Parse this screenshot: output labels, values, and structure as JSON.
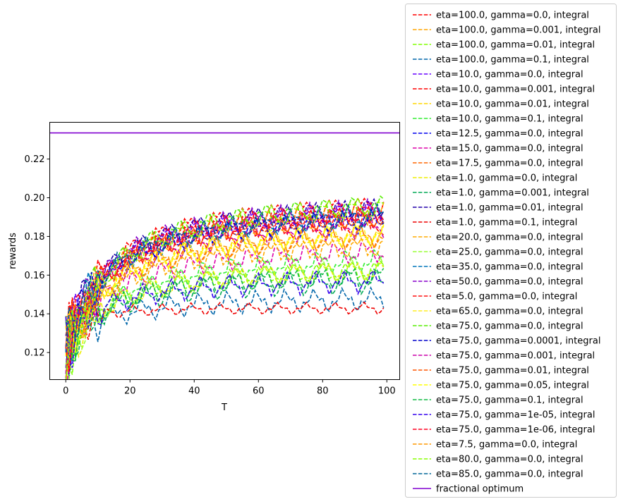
{
  "chart_data": {
    "type": "line",
    "title": "",
    "xlabel": "T",
    "ylabel": "rewards",
    "xlim": [
      -5,
      104
    ],
    "ylim": [
      0.106,
      0.239
    ],
    "xticks": [
      0,
      20,
      40,
      60,
      80,
      100
    ],
    "yticks": [
      0.12,
      0.14,
      0.16,
      0.18,
      0.2,
      0.22
    ],
    "legend_position": "right-outside",
    "grid": false,
    "reference_line": {
      "name": "fractional optimum",
      "value": 0.2335,
      "color": "#8000d0"
    },
    "series": [
      {
        "name": "eta=100.0, gamma=0.0, integral",
        "color": "#ff0000",
        "start": 0.122,
        "final": 0.214,
        "k": 0.0065,
        "jitter": 0.004
      },
      {
        "name": "eta=100.0, gamma=0.001, integral",
        "color": "#ffa500",
        "start": 0.12,
        "final": 0.206,
        "k": 0.007,
        "jitter": 0.004
      },
      {
        "name": "eta=100.0, gamma=0.01, integral",
        "color": "#80ff00",
        "start": 0.118,
        "final": 0.172,
        "k": 0.007,
        "jitter": 0.004
      },
      {
        "name": "eta=100.0, gamma=0.1, integral",
        "color": "#0066aa",
        "start": 0.124,
        "final": 0.151,
        "k": 0.008,
        "jitter": 0.004
      },
      {
        "name": "eta=10.0, gamma=0.0, integral",
        "color": "#6600ff",
        "start": 0.124,
        "final": 0.212,
        "k": 0.006,
        "jitter": 0.004
      },
      {
        "name": "eta=10.0, gamma=0.001, integral",
        "color": "#ff0000",
        "start": 0.121,
        "final": 0.207,
        "k": 0.0065,
        "jitter": 0.004
      },
      {
        "name": "eta=10.0, gamma=0.01, integral",
        "color": "#ffd700",
        "start": 0.119,
        "final": 0.196,
        "k": 0.0065,
        "jitter": 0.004
      },
      {
        "name": "eta=10.0, gamma=0.1, integral",
        "color": "#33ee33",
        "start": 0.122,
        "final": 0.181,
        "k": 0.006,
        "jitter": 0.004
      },
      {
        "name": "eta=12.5, gamma=0.0, integral",
        "color": "#0000ee",
        "start": 0.123,
        "final": 0.204,
        "k": 0.0065,
        "jitter": 0.004
      },
      {
        "name": "eta=15.0, gamma=0.0, integral",
        "color": "#dd00aa",
        "start": 0.12,
        "final": 0.185,
        "k": 0.0065,
        "jitter": 0.004
      },
      {
        "name": "eta=17.5, gamma=0.0, integral",
        "color": "#ff6600",
        "start": 0.118,
        "final": 0.196,
        "k": 0.0065,
        "jitter": 0.004
      },
      {
        "name": "eta=1.0, gamma=0.0, integral",
        "color": "#eeee00",
        "start": 0.117,
        "final": 0.172,
        "k": 0.007,
        "jitter": 0.004
      },
      {
        "name": "eta=1.0, gamma=0.001, integral",
        "color": "#00aa55",
        "start": 0.121,
        "final": 0.164,
        "k": 0.007,
        "jitter": 0.004
      },
      {
        "name": "eta=1.0, gamma=0.01, integral",
        "color": "#2200aa",
        "start": 0.125,
        "final": 0.215,
        "k": 0.006,
        "jitter": 0.004
      },
      {
        "name": "eta=1.0, gamma=0.1, integral",
        "color": "#ee0000",
        "start": 0.123,
        "final": 0.143,
        "k": 0.02,
        "jitter": 0.002
      },
      {
        "name": "eta=20.0, gamma=0.0, integral",
        "color": "#ffaa00",
        "start": 0.12,
        "final": 0.188,
        "k": 0.0065,
        "jitter": 0.004
      },
      {
        "name": "eta=25.0, gamma=0.0, integral",
        "color": "#99ff33",
        "start": 0.116,
        "final": 0.173,
        "k": 0.007,
        "jitter": 0.004
      },
      {
        "name": "eta=35.0, gamma=0.0, integral",
        "color": "#0077bb",
        "start": 0.124,
        "final": 0.209,
        "k": 0.006,
        "jitter": 0.004
      },
      {
        "name": "eta=50.0, gamma=0.0, integral",
        "color": "#8800cc",
        "start": 0.126,
        "final": 0.213,
        "k": 0.006,
        "jitter": 0.004
      },
      {
        "name": "eta=5.0, gamma=0.0, integral",
        "color": "#ff1111",
        "start": 0.122,
        "final": 0.203,
        "k": 0.0065,
        "jitter": 0.004
      },
      {
        "name": "eta=65.0, gamma=0.0, integral",
        "color": "#ffee22",
        "start": 0.118,
        "final": 0.197,
        "k": 0.0065,
        "jitter": 0.004
      },
      {
        "name": "eta=75.0, gamma=0.0, integral",
        "color": "#55ee00",
        "start": 0.121,
        "final": 0.217,
        "k": 0.006,
        "jitter": 0.004
      },
      {
        "name": "eta=75.0, gamma=0.0001, integral",
        "color": "#0000cc",
        "start": 0.123,
        "final": 0.205,
        "k": 0.0065,
        "jitter": 0.004
      },
      {
        "name": "eta=75.0, gamma=0.001, integral",
        "color": "#cc00aa",
        "start": 0.119,
        "final": 0.202,
        "k": 0.0065,
        "jitter": 0.004
      },
      {
        "name": "eta=75.0, gamma=0.01, integral",
        "color": "#ff5500",
        "start": 0.12,
        "final": 0.207,
        "k": 0.0065,
        "jitter": 0.004
      },
      {
        "name": "eta=75.0, gamma=0.05, integral",
        "color": "#ffff00",
        "start": 0.117,
        "final": 0.197,
        "k": 0.0065,
        "jitter": 0.004
      },
      {
        "name": "eta=75.0, gamma=0.1, integral",
        "color": "#11bb44",
        "start": 0.121,
        "final": 0.167,
        "k": 0.007,
        "jitter": 0.004
      },
      {
        "name": "eta=75.0, gamma=1e-05, integral",
        "color": "#3300ee",
        "start": 0.124,
        "final": 0.162,
        "k": 0.008,
        "jitter": 0.004
      },
      {
        "name": "eta=75.0, gamma=1e-06, integral",
        "color": "#ff0022",
        "start": 0.122,
        "final": 0.213,
        "k": 0.006,
        "jitter": 0.004
      },
      {
        "name": "eta=7.5, gamma=0.0, integral",
        "color": "#ff9900",
        "start": 0.119,
        "final": 0.195,
        "k": 0.0065,
        "jitter": 0.004
      },
      {
        "name": "eta=80.0, gamma=0.0, integral",
        "color": "#88ff00",
        "start": 0.116,
        "final": 0.218,
        "k": 0.006,
        "jitter": 0.004
      },
      {
        "name": "eta=85.0, gamma=0.0, integral",
        "color": "#006699",
        "start": 0.125,
        "final": 0.21,
        "k": 0.006,
        "jitter": 0.004
      }
    ]
  }
}
